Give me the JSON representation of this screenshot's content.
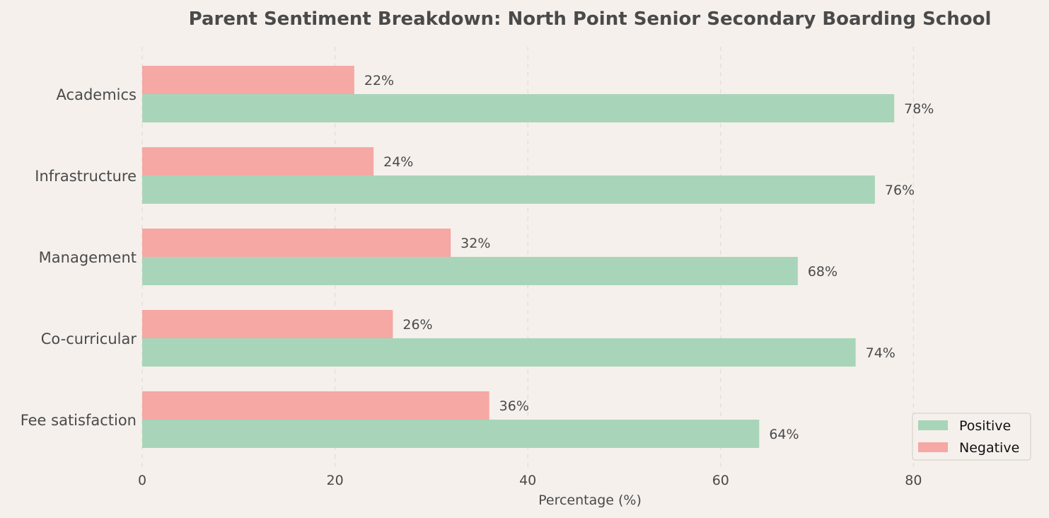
{
  "chart_data": {
    "type": "bar",
    "orientation": "horizontal",
    "title": "Parent Sentiment Breakdown: North Point Senior Secondary Boarding School",
    "xlabel": "Percentage (%)",
    "ylabel": "",
    "xlim": [
      0,
      90
    ],
    "xticks": [
      0,
      20,
      40,
      60,
      80
    ],
    "grid": "x-dashed",
    "legend_placement": "bottom-right",
    "categories": [
      "Academics",
      "Infrastructure",
      "Management",
      "Co-curricular",
      "Fee satisfaction"
    ],
    "series": [
      {
        "name": "Positive",
        "color": "#a8d5b9",
        "values": [
          78,
          76,
          68,
          74,
          64
        ],
        "labels": [
          "78%",
          "76%",
          "68%",
          "74%",
          "64%"
        ]
      },
      {
        "name": "Negative",
        "color": "#f5a8a4",
        "values": [
          22,
          24,
          32,
          26,
          36
        ],
        "labels": [
          "22%",
          "24%",
          "32%",
          "26%",
          "36%"
        ]
      }
    ]
  },
  "colors": {
    "background": "#f5f0ec",
    "text": "#4a4a4a",
    "grid": "#e2ddd8"
  }
}
